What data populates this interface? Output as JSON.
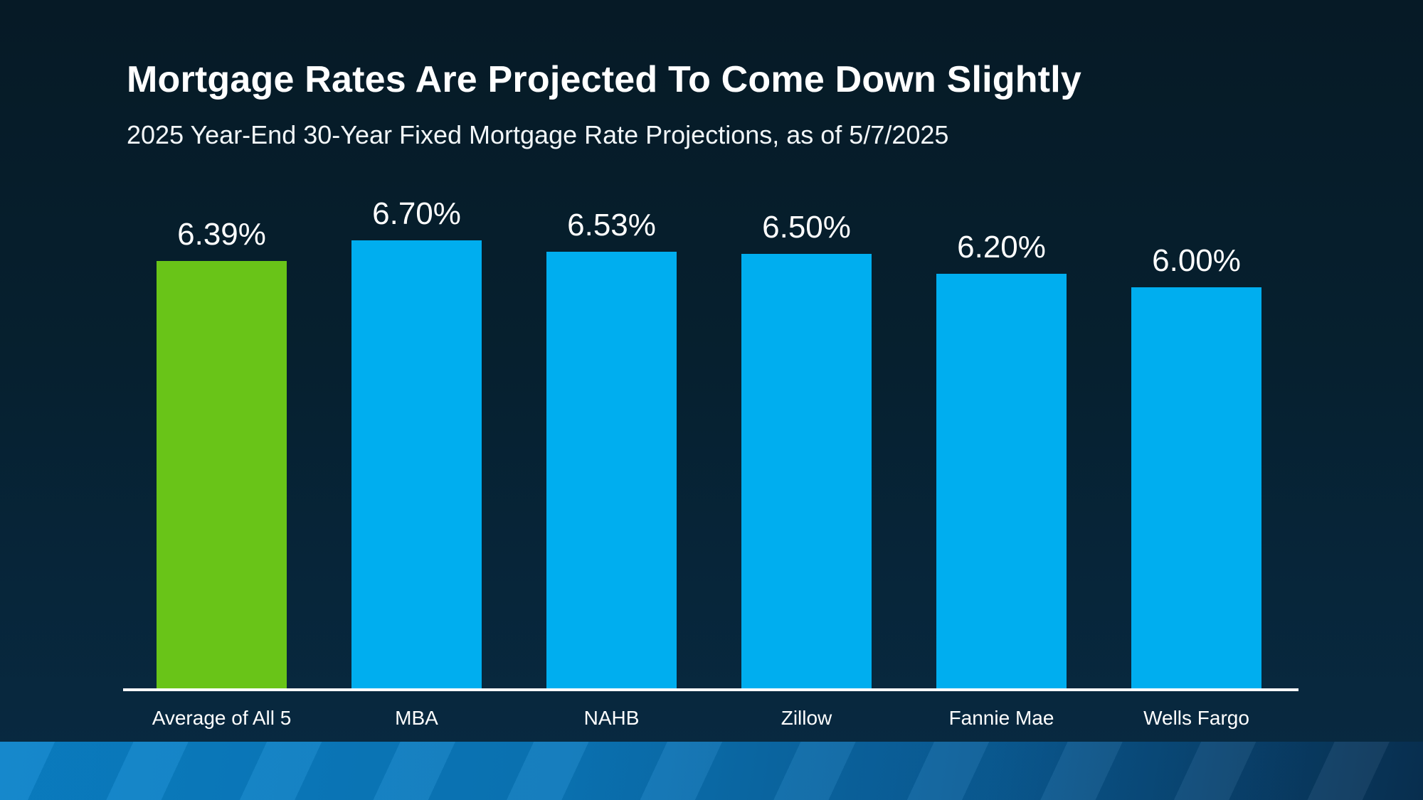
{
  "header": {
    "title": "Mortgage Rates Are Projected To Come Down Slightly",
    "subtitle": "2025 Year-End 30-Year Fixed Mortgage Rate Projections, as of 5/7/2025"
  },
  "chart_data": {
    "type": "bar",
    "title": "Mortgage Rates Are Projected To Come Down Slightly",
    "subtitle": "2025 Year-End 30-Year Fixed Mortgage Rate Projections, as of 5/7/2025",
    "categories": [
      "Average of All 5",
      "MBA",
      "NAHB",
      "Zillow",
      "Fannie Mae",
      "Wells Fargo"
    ],
    "values": [
      6.39,
      6.7,
      6.53,
      6.5,
      6.2,
      6.0
    ],
    "value_labels": [
      "6.39%",
      "6.70%",
      "6.53%",
      "6.50%",
      "6.20%",
      "6.00%"
    ],
    "xlabel": "",
    "ylabel": "",
    "ylim": [
      0,
      7.0
    ],
    "grid": false,
    "legend": "none",
    "bar_colors": [
      "#69c418",
      "#00aeef",
      "#00aeef",
      "#00aeef",
      "#00aeef",
      "#00aeef"
    ],
    "highlight_color": "#69c418",
    "default_color": "#00aeef",
    "axis_line_color": "#ffffff",
    "label_color": "#ffffff"
  },
  "colors": {
    "background_top": "#061a26",
    "background_bottom": "#082a42",
    "footer_blue": "#0a82c9",
    "footer_dark": "#093153",
    "text": "#ffffff"
  }
}
